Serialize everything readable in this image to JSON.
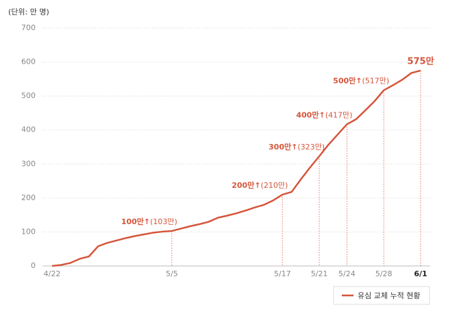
{
  "chart_data": {
    "type": "line",
    "unit_label": "(단위: 만 명)",
    "categories": [
      "4/22",
      null,
      null,
      null,
      null,
      null,
      null,
      null,
      null,
      null,
      null,
      null,
      null,
      "5/5",
      null,
      null,
      null,
      null,
      null,
      null,
      null,
      null,
      null,
      null,
      null,
      "5/17",
      null,
      null,
      null,
      "5/21",
      null,
      null,
      "5/24",
      null,
      null,
      null,
      "5/28",
      null,
      null,
      null,
      "6/1"
    ],
    "series": [
      {
        "name": "유심 교체 누적 현황",
        "color": "#d5553a",
        "values": [
          0,
          3,
          9,
          21,
          28,
          58,
          68,
          75,
          82,
          88,
          93,
          98,
          101,
          103,
          110,
          117,
          123,
          130,
          142,
          148,
          155,
          163,
          172,
          180,
          193,
          210,
          218,
          255,
          290,
          323,
          357,
          387,
          417,
          432,
          458,
          485,
          517,
          532,
          548,
          568,
          575
        ],
        "value_labels": [
          null,
          null,
          null,
          null,
          null,
          null,
          null,
          null,
          null,
          null,
          null,
          null,
          null,
          "(103만)",
          null,
          null,
          null,
          null,
          null,
          null,
          null,
          null,
          null,
          null,
          null,
          "(210만)",
          null,
          null,
          null,
          "(323만)",
          null,
          null,
          "(417만)",
          null,
          null,
          null,
          "(517만)",
          null,
          null,
          null,
          "575만"
        ]
      }
    ],
    "annotations": [
      {
        "x": "5/5",
        "text": "100만↑"
      },
      {
        "x": "5/17",
        "text": "200만↑"
      },
      {
        "x": "5/21",
        "text": "300만↑"
      },
      {
        "x": "5/24",
        "text": "400만↑"
      },
      {
        "x": "5/28",
        "text": "500만↑"
      }
    ],
    "ylim": [
      0,
      700
    ],
    "yticks": [
      0,
      100,
      200,
      300,
      400,
      500,
      600,
      700
    ],
    "grid": true,
    "legend": "bottom-right"
  }
}
